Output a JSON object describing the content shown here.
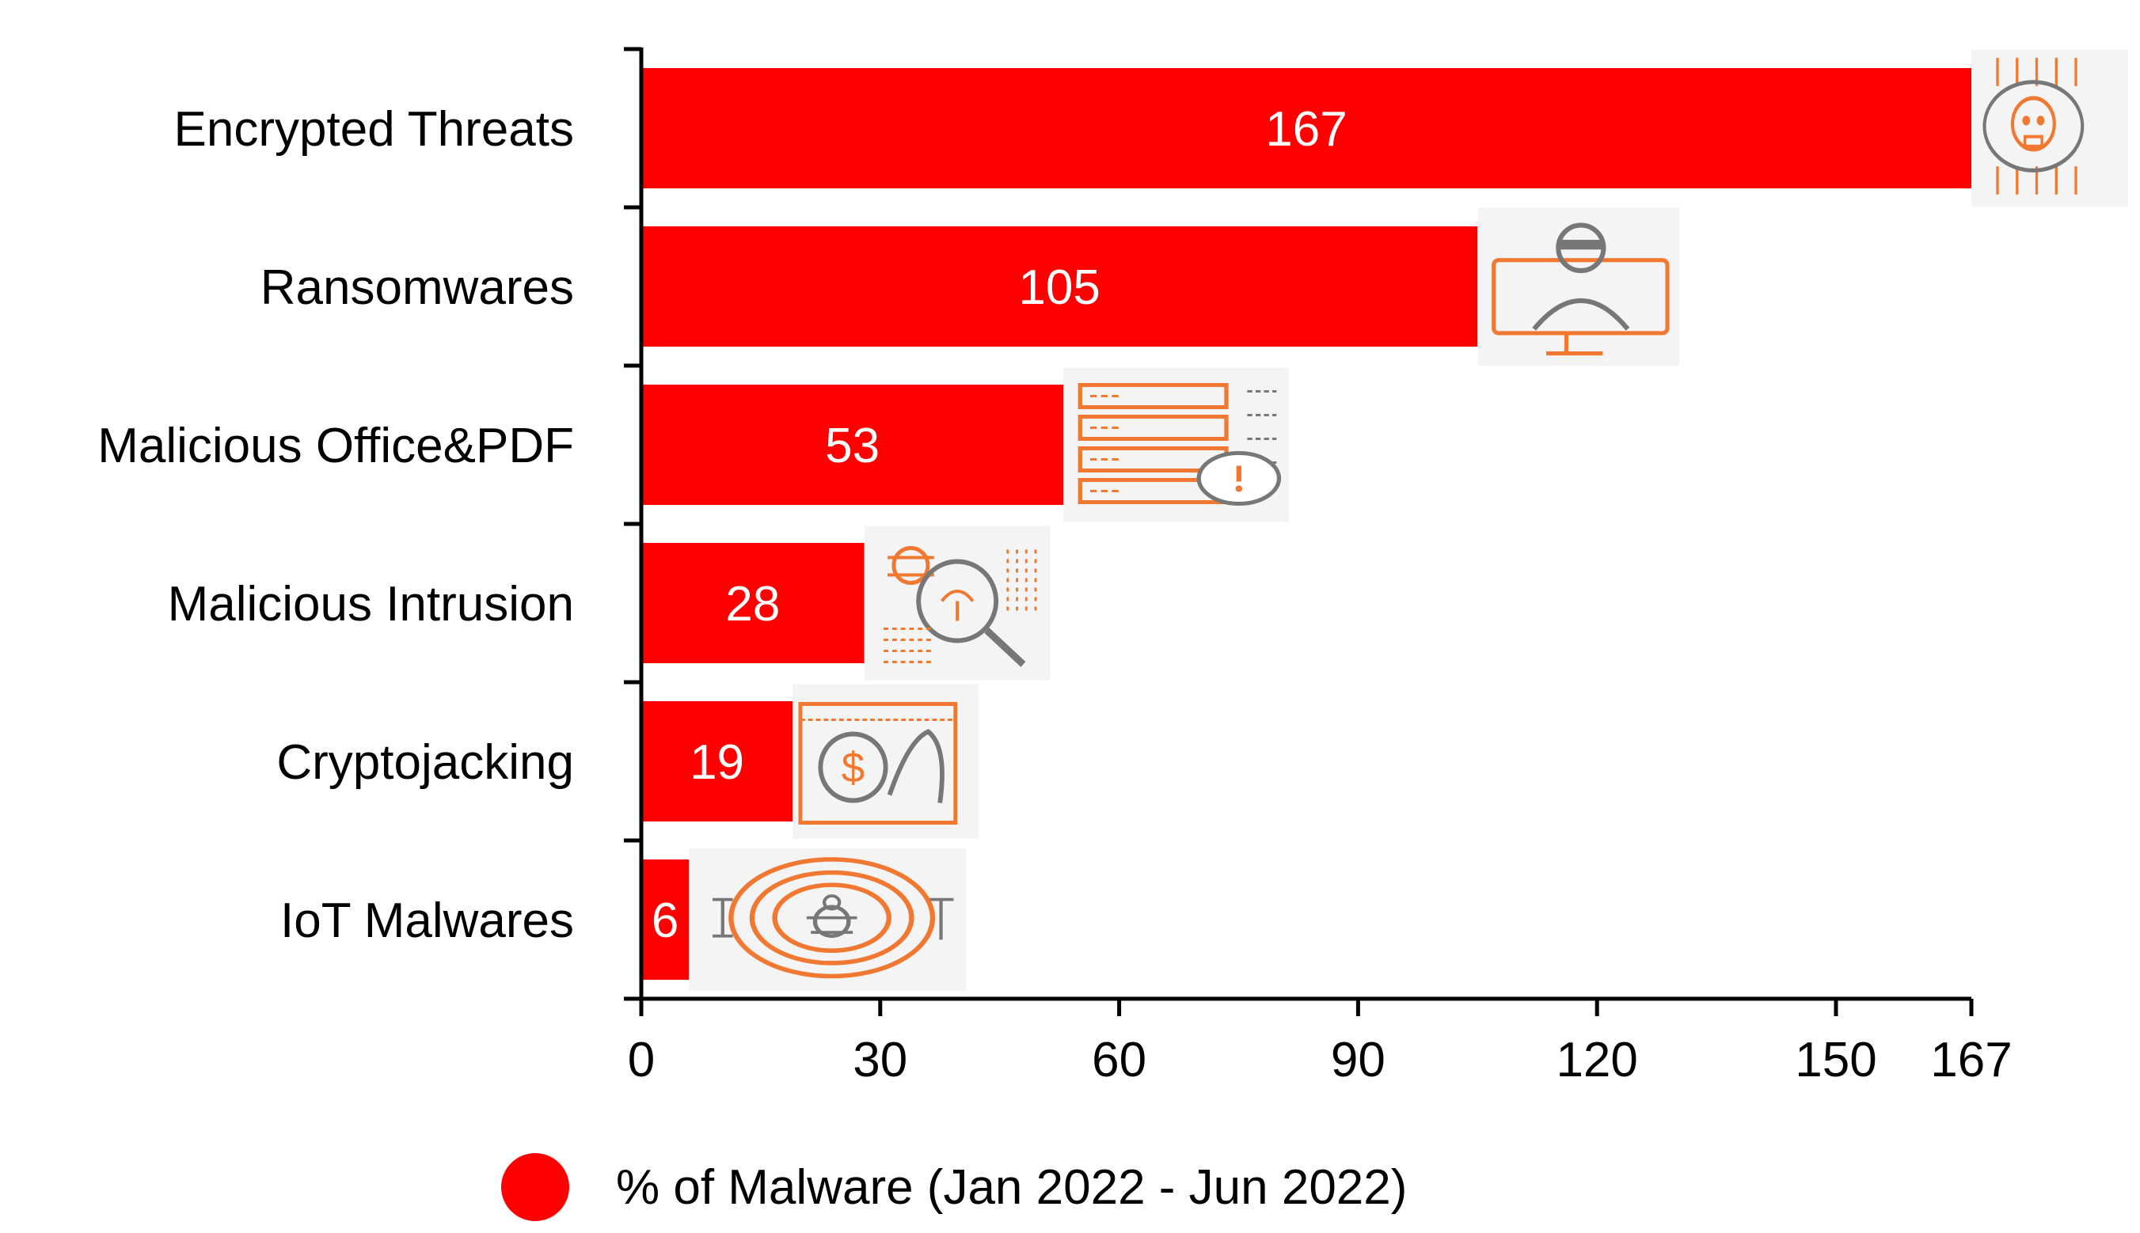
{
  "colors": {
    "bar": "#ff0000",
    "icon": "#f07830",
    "iconGray": "#777777",
    "axis": "#000000"
  },
  "chart_data": {
    "type": "bar",
    "orientation": "horizontal",
    "categories": [
      "Encrypted Threats",
      "Ransomwares",
      "Malicious Office&PDF",
      "Malicious Intrusion",
      "Cryptojacking",
      "IoT Malwares"
    ],
    "values": [
      167,
      105,
      53,
      28,
      19,
      6
    ],
    "data_labels": [
      "167",
      "105",
      "53",
      "28",
      "19",
      "6"
    ],
    "icons": [
      "encrypted-skull-circuit-icon",
      "hacker-monitor-icon",
      "server-warning-icon",
      "bug-magnifier-icon",
      "dollar-coin-hand-icon",
      "iot-bug-signal-icon"
    ],
    "xlim": [
      0,
      167
    ],
    "xticks": [
      0,
      30,
      60,
      90,
      120,
      150,
      167
    ],
    "xtick_labels": [
      "0",
      "30",
      "60",
      "90",
      "120",
      "150",
      "167"
    ],
    "legend": {
      "label": "% of Malware (Jan 2022 - Jun 2022)",
      "position": "bottom"
    },
    "title": "",
    "xlabel": "",
    "ylabel": ""
  }
}
